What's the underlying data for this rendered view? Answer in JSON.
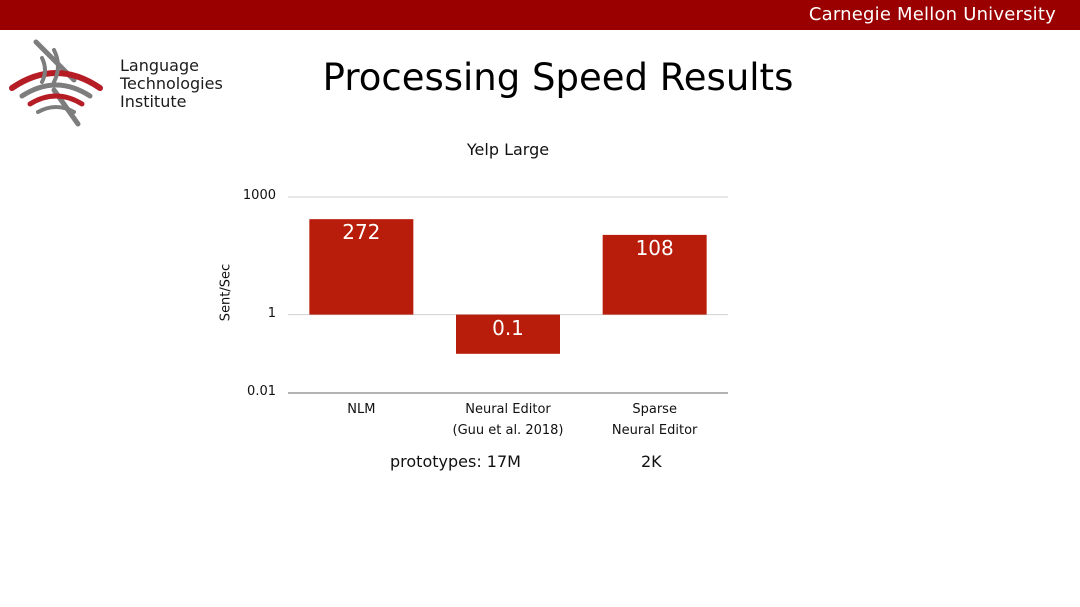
{
  "header": {
    "university": "Carnegie Mellon University",
    "bar_color": "#9b0000"
  },
  "logo": {
    "icon": "lti-arcs-logo",
    "lines": [
      "Language",
      "Technologies",
      "Institute"
    ],
    "colors": {
      "red": "#b51c24",
      "gray": "#7d7d7d"
    }
  },
  "slide": {
    "title": "Processing Speed Results"
  },
  "chart_data": {
    "type": "bar",
    "title": "Yelp Large",
    "ylabel": "Sent/Sec",
    "xlabel": "",
    "scale": "log",
    "ylim": [
      0.01,
      1000
    ],
    "baseline": 1,
    "yticks": [
      {
        "value": 1000,
        "label": "1000"
      },
      {
        "value": 1,
        "label": "1"
      },
      {
        "value": 0.01,
        "label": "0.01"
      }
    ],
    "categories": [
      [
        "NLM"
      ],
      [
        "Neural Editor",
        "(Guu et al. 2018)"
      ],
      [
        "Sparse",
        "Neural Editor"
      ]
    ],
    "values": [
      272,
      0.1,
      108
    ],
    "data_labels": [
      "272",
      "0.1",
      "108"
    ],
    "bar_color": "#b81c0a",
    "grid": true,
    "legend": "none"
  },
  "prototypes": {
    "neural_editor": "prototypes: 17M",
    "sparse_neural_editor": "2K"
  }
}
